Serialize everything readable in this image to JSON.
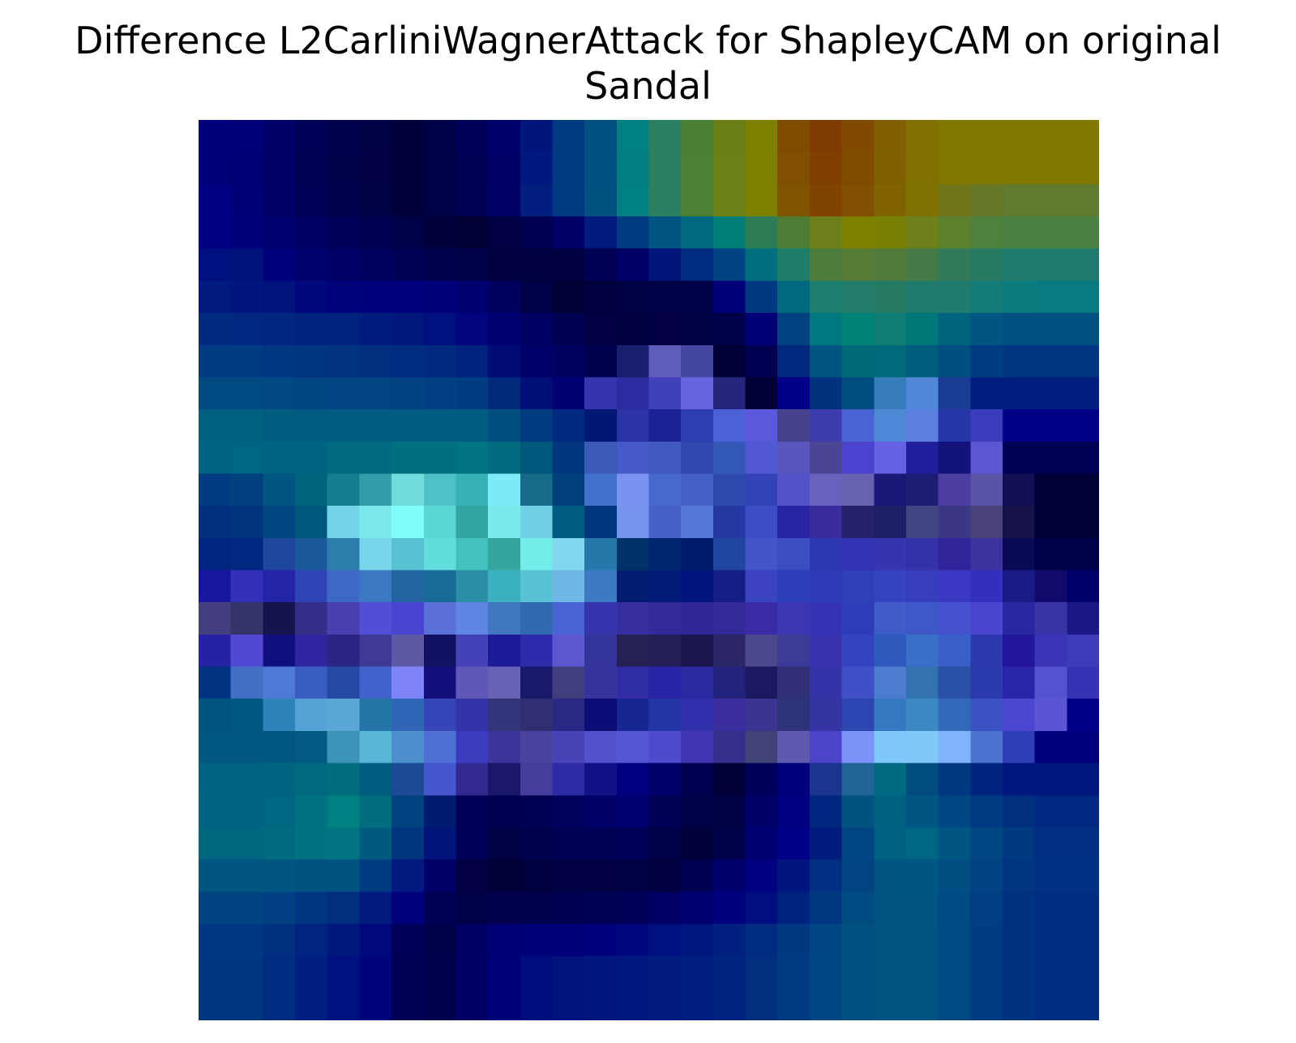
{
  "chart_data": {
    "type": "heatmap",
    "title": "Difference L2CarliniWagnerAttack for ShapleyCAM on original\nSandal",
    "rows": 28,
    "cols": 28,
    "axes_visible": false,
    "colorbar": false,
    "colormap": "jet overlay on image",
    "cells_hex": [
      [
        "#00007a",
        "#000079",
        "#000068",
        "#000058",
        "#00004e",
        "#000044",
        "#00003a",
        "#000049",
        "#00005a",
        "#00006c",
        "#00167d",
        "#003a82",
        "#005182",
        "#008080",
        "#2c8062",
        "#4a8034",
        "#6a8017",
        "#808000",
        "#804d00",
        "#803c00",
        "#804a00",
        "#806000",
        "#807000",
        "#807800",
        "#807800",
        "#807800",
        "#807800",
        "#807800"
      ],
      [
        "#000078",
        "#000075",
        "#000066",
        "#000055",
        "#00004b",
        "#000043",
        "#00003a",
        "#000046",
        "#000056",
        "#000068",
        "#001980",
        "#003a82",
        "#005082",
        "#007e80",
        "#2c8062",
        "#4b8035",
        "#6b8017",
        "#808000",
        "#805000",
        "#803f00",
        "#804c00",
        "#806100",
        "#807000",
        "#807800",
        "#807800",
        "#807800",
        "#807800",
        "#807800"
      ],
      [
        "#000080",
        "#000077",
        "#000068",
        "#000058",
        "#00004e",
        "#000045",
        "#00003c",
        "#000048",
        "#000057",
        "#000069",
        "#001f7f",
        "#003a82",
        "#005080",
        "#008080",
        "#2c8062",
        "#4b8035",
        "#6b8017",
        "#808000",
        "#805300",
        "#804400",
        "#805000",
        "#806400",
        "#807200",
        "#707418",
        "#647828",
        "#607a30",
        "#607a30",
        "#607a30"
      ],
      [
        "#000081",
        "#00007a",
        "#000070",
        "#000063",
        "#00005a",
        "#000050",
        "#000048",
        "#00003c",
        "#000035",
        "#000042",
        "#000053",
        "#000066",
        "#001a7d",
        "#003a82",
        "#005582",
        "#006980",
        "#007e76",
        "#2c7d55",
        "#4d7d34",
        "#6d7f1a",
        "#808000",
        "#798006",
        "#6d801a",
        "#5d802e",
        "#4e803e",
        "#4a8042",
        "#4a8042",
        "#4a8042"
      ],
      [
        "#000f7e",
        "#00117b",
        "#00007c",
        "#00006e",
        "#000067",
        "#00005e",
        "#000055",
        "#00004d",
        "#000049",
        "#00003f",
        "#000040",
        "#000041",
        "#000054",
        "#000069",
        "#00167c",
        "#002d7f",
        "#004383",
        "#006f80",
        "#1e7e6a",
        "#4e7c3c",
        "#557b35",
        "#507a3c",
        "#437a48",
        "#337a58",
        "#267b65",
        "#217b6c",
        "#217b6c",
        "#217b6c"
      ],
      [
        "#001a80",
        "#00167e",
        "#00137d",
        "#00077a",
        "#00027a",
        "#00007c",
        "#00007e",
        "#00007a",
        "#000070",
        "#00005e",
        "#000048",
        "#000035",
        "#00003e",
        "#000045",
        "#000047",
        "#000048",
        "#000078",
        "#003882",
        "#006980",
        "#1e7f71",
        "#237d6a",
        "#267b65",
        "#207a6c",
        "#1f7b70",
        "#157b78",
        "#0b7b7e",
        "#087b80",
        "#087b80"
      ],
      [
        "#002980",
        "#002880",
        "#00267f",
        "#00237e",
        "#00227d",
        "#001c7c",
        "#00177d",
        "#000f7e",
        "#00047d",
        "#000070",
        "#000062",
        "#000051",
        "#000042",
        "#00003e",
        "#000042",
        "#000045",
        "#000048",
        "#000076",
        "#004180",
        "#007880",
        "#008276",
        "#0e7e74",
        "#007778",
        "#00647f",
        "#005582",
        "#005182",
        "#005182",
        "#005182"
      ],
      [
        "#003b82",
        "#003a82",
        "#003782",
        "#003582",
        "#003380",
        "#002f80",
        "#002c80",
        "#002a80",
        "#00217d",
        "#000b76",
        "#00006a",
        "#000060",
        "#00004f",
        "#181f6f",
        "#5f5cbb",
        "#4446a2",
        "#000038",
        "#000050",
        "#00287c",
        "#005582",
        "#006978",
        "#006a7a",
        "#005c7d",
        "#004e82",
        "#003c82",
        "#003582",
        "#003582",
        "#003582"
      ],
      [
        "#004a82",
        "#004a82",
        "#004882",
        "#004782",
        "#004582",
        "#004482",
        "#004282",
        "#003f82",
        "#003c82",
        "#00297a",
        "#000f77",
        "#000072",
        "#3635b0",
        "#2e2aa0",
        "#3f41b9",
        "#6864e0",
        "#25267c",
        "#000036",
        "#000088",
        "#00327e",
        "#004d82",
        "#357cbb",
        "#5087d6",
        "#1a3b93",
        "#001d80",
        "#001d80",
        "#001d80",
        "#001d80"
      ],
      [
        "#006080",
        "#006080",
        "#005d80",
        "#005c80",
        "#005c80",
        "#005c80",
        "#005c80",
        "#005c80",
        "#005b80",
        "#004e80",
        "#003c80",
        "#002a80",
        "#001873",
        "#2c35a6",
        "#1a2294",
        "#2d3eb0",
        "#4d61d6",
        "#5c58dd",
        "#45418a",
        "#3c3cae",
        "#4863d2",
        "#4e87d6",
        "#5b7ee0",
        "#2536a6",
        "#3a3cbc",
        "#000086",
        "#000086",
        "#000086"
      ],
      [
        "#006380",
        "#006580",
        "#006380",
        "#006380",
        "#006a80",
        "#006a80",
        "#007080",
        "#007080",
        "#007480",
        "#006a80",
        "#00587d",
        "#00367e",
        "#3b5ab8",
        "#4659c8",
        "#4258c2",
        "#2e48b0",
        "#3357b7",
        "#5158d4",
        "#5a56bd",
        "#4a4693",
        "#4d42d0",
        "#6462e2",
        "#211f9b",
        "#13137b",
        "#5e56d0",
        "#000057",
        "#000057",
        "#000057"
      ],
      [
        "#003c82",
        "#00407f",
        "#005582",
        "#00637e",
        "#177e8f",
        "#349ba8",
        "#70dcdd",
        "#4ec1c7",
        "#38b1b5",
        "#7bebf7",
        "#166b8a",
        "#003e7c",
        "#4072cc",
        "#7a92f0",
        "#4769cd",
        "#4561c8",
        "#2c49ac",
        "#3342b7",
        "#5453c8",
        "#6763bd",
        "#6563b0",
        "#1a1777",
        "#1e1d73",
        "#4c3ea0",
        "#5954a6",
        "#120f52",
        "#000036",
        "#000036"
      ],
      [
        "#00307e",
        "#00347e",
        "#004680",
        "#00587c",
        "#73d4e7",
        "#7ae8ec",
        "#80fdfd",
        "#5ad6d7",
        "#32a6a5",
        "#79ebed",
        "#72d0e6",
        "#005c80",
        "#00367e",
        "#7695ee",
        "#4462c8",
        "#5477d8",
        "#2437a2",
        "#3c4ec4",
        "#2924a4",
        "#3a2c9c",
        "#23226a",
        "#1f1e68",
        "#424484",
        "#3a3884",
        "#494178",
        "#141248",
        "#000038",
        "#000038"
      ],
      [
        "#002580",
        "#002880",
        "#1c479c",
        "#1b5a9a",
        "#297eab",
        "#78d6eb",
        "#57c2d3",
        "#62ddde",
        "#43c1bf",
        "#35a69e",
        "#74ecea",
        "#82d7f0",
        "#2678aa",
        "#003268",
        "#00266e",
        "#001d6c",
        "#20459e",
        "#4255c6",
        "#3b4ebf",
        "#2d37b0",
        "#3333b5",
        "#3734b0",
        "#3532a8",
        "#2d2599",
        "#3c339f",
        "#090955",
        "#000048",
        "#000048"
      ],
      [
        "#17179d",
        "#332fb7",
        "#2424a8",
        "#2f45b6",
        "#3d68c6",
        "#3a78c4",
        "#2264a0",
        "#186b96",
        "#2c8fa8",
        "#3ab0c0",
        "#59c2d6",
        "#6eb8e7",
        "#3e7ac4",
        "#001d72",
        "#001c76",
        "#01137c",
        "#141d84",
        "#3b43c0",
        "#2d3ebc",
        "#2e3ab8",
        "#2f3fb8",
        "#3543c0",
        "#373ebe",
        "#3b38c4",
        "#3230bd",
        "#1a1a87",
        "#100a6d",
        "#00006c"
      ],
      [
        "#423e80",
        "#34346a",
        "#16144f",
        "#332f88",
        "#4840b0",
        "#524fd6",
        "#4a45d1",
        "#5b6fd9",
        "#5e85e1",
        "#4177c1",
        "#326ab2",
        "#4963d2",
        "#3536ad",
        "#372fa0",
        "#33299b",
        "#2f2798",
        "#322a98",
        "#3a2ca6",
        "#3d36b2",
        "#3433b8",
        "#2f3cb8",
        "#3f5cc8",
        "#3f58c8",
        "#4551cd",
        "#4a44ce",
        "#2a28a0",
        "#3a33a8",
        "#1b1787"
      ],
      [
        "#2722a4",
        "#5147d2",
        "#111083",
        "#2f25a0",
        "#2b2485",
        "#403a96",
        "#5d59a2",
        "#131262",
        "#4542b8",
        "#1b1b9a",
        "#2d2bac",
        "#5d57d0",
        "#35349a",
        "#262153",
        "#231e57",
        "#1b1650",
        "#2c2767",
        "#4b488c",
        "#3e3a98",
        "#3a32ad",
        "#3443c0",
        "#2f5abd",
        "#3a6fc8",
        "#395fc8",
        "#2e38ae",
        "#21159e",
        "#3b34b6",
        "#3e3cb8"
      ],
      [
        "#003482",
        "#416fc4",
        "#4e7ad6",
        "#395dc0",
        "#2648a4",
        "#4263cc",
        "#7e84f8",
        "#13107b",
        "#5f58b8",
        "#6763b4",
        "#181968",
        "#403f7e",
        "#38339a",
        "#302ca4",
        "#2822a4",
        "#2c28a0",
        "#24237c",
        "#1b1a60",
        "#322f79",
        "#3434a8",
        "#3f4fc8",
        "#4c7cd0",
        "#3272ae",
        "#2a51a6",
        "#2b3aac",
        "#2924a8",
        "#5453d0",
        "#3633b4"
      ],
      [
        "#005580",
        "#005880",
        "#2e84b8",
        "#55a2d6",
        "#5aa6d6",
        "#2675a8",
        "#3165b8",
        "#3645b8",
        "#3434a8",
        "#34347a",
        "#2f2f72",
        "#2a2884",
        "#0c0c76",
        "#172693",
        "#2635a5",
        "#3030ad",
        "#3a2ea0",
        "#3a3492",
        "#2e3278",
        "#3634a2",
        "#2b46b0",
        "#3478c0",
        "#3c88c4",
        "#3468b8",
        "#3b52c4",
        "#4b45d0",
        "#5b54d4",
        "#000088"
      ],
      [
        "#005780",
        "#005880",
        "#005780",
        "#005a82",
        "#3c93b8",
        "#5ab6d6",
        "#4c8fcc",
        "#4f6fd4",
        "#3b3bc0",
        "#3c369a",
        "#4943a0",
        "#4844b8",
        "#5451cc",
        "#5456d4",
        "#4d4acc",
        "#3f35b0",
        "#352f8c",
        "#414278",
        "#5f5ab0",
        "#4c44c8",
        "#7b93f8",
        "#80c8fc",
        "#80c8f8",
        "#7fb4fc",
        "#4c73d0",
        "#2f3eb4",
        "#00007c",
        "#00007c"
      ],
      [
        "#006280",
        "#006280",
        "#006380",
        "#00697f",
        "#006d7e",
        "#005b80",
        "#1c4a96",
        "#4656cc",
        "#322a90",
        "#1b186a",
        "#443d9c",
        "#2e2ba4",
        "#111288",
        "#000080",
        "#00006a",
        "#000050",
        "#000038",
        "#000058",
        "#00007c",
        "#1a3590",
        "#1f6494",
        "#006880",
        "#004c80",
        "#003780",
        "#00237f",
        "#001780",
        "#001780",
        "#001780"
      ],
      [
        "#006380",
        "#006380",
        "#006580",
        "#007380",
        "#008080",
        "#006c80",
        "#00427f",
        "#001c70",
        "#000058",
        "#000050",
        "#000055",
        "#00005d",
        "#000069",
        "#000070",
        "#000056",
        "#00004a",
        "#000045",
        "#000066",
        "#000081",
        "#002780",
        "#005380",
        "#006080",
        "#005582",
        "#004682",
        "#003a82",
        "#002f80",
        "#002880",
        "#002880"
      ],
      [
        "#006680",
        "#006680",
        "#006a80",
        "#007280",
        "#007480",
        "#005a80",
        "#003680",
        "#00137a",
        "#000058",
        "#000045",
        "#00004e",
        "#000055",
        "#000056",
        "#000058",
        "#000046",
        "#00003a",
        "#000048",
        "#000070",
        "#000088",
        "#001c80",
        "#004682",
        "#006080",
        "#006582",
        "#005680",
        "#004682",
        "#003882",
        "#002e80",
        "#002e80"
      ],
      [
        "#005680",
        "#005680",
        "#005680",
        "#005380",
        "#005280",
        "#003a82",
        "#001a80",
        "#000068",
        "#000042",
        "#000038",
        "#00003e",
        "#000042",
        "#000042",
        "#000044",
        "#000040",
        "#000050",
        "#00006d",
        "#000080",
        "#001580",
        "#002e80",
        "#004482",
        "#005482",
        "#005682",
        "#004e82",
        "#004282",
        "#003582",
        "#003082",
        "#003082"
      ],
      [
        "#004282",
        "#004282",
        "#004082",
        "#003582",
        "#002f80",
        "#001a7f",
        "#00007c",
        "#000054",
        "#000046",
        "#00004e",
        "#00004e",
        "#000050",
        "#000054",
        "#000058",
        "#000066",
        "#000070",
        "#00007c",
        "#000e7f",
        "#00237f",
        "#003780",
        "#004a82",
        "#005582",
        "#005582",
        "#004a82",
        "#003d82",
        "#003282",
        "#002d80",
        "#002d80"
      ],
      [
        "#003682",
        "#003682",
        "#003080",
        "#00247f",
        "#00187e",
        "#00087a",
        "#000058",
        "#00004b",
        "#000062",
        "#000074",
        "#000079",
        "#00007a",
        "#00007c",
        "#00077e",
        "#00107e",
        "#001780",
        "#00207f",
        "#002c80",
        "#003882",
        "#004682",
        "#005182",
        "#005482",
        "#005482",
        "#004a82",
        "#003c82",
        "#003282",
        "#002d80",
        "#002d80"
      ],
      [
        "#003582",
        "#003582",
        "#002c80",
        "#001f80",
        "#00107e",
        "#00047a",
        "#000054",
        "#00004d",
        "#000064",
        "#000078",
        "#000b7c",
        "#00127e",
        "#00167f",
        "#00187f",
        "#001a7f",
        "#001d80",
        "#00237f",
        "#002f80",
        "#003a82",
        "#004682",
        "#005182",
        "#005482",
        "#005482",
        "#004a82",
        "#003c82",
        "#003282",
        "#002d80",
        "#002d80"
      ],
      [
        "#003582",
        "#003582",
        "#002c80",
        "#001f80",
        "#00107e",
        "#00047a",
        "#000054",
        "#00004d",
        "#000064",
        "#000078",
        "#000b7c",
        "#00127e",
        "#00167f",
        "#00187f",
        "#001a7f",
        "#001d80",
        "#00237f",
        "#002f80",
        "#003a82",
        "#004682",
        "#005182",
        "#005482",
        "#005482",
        "#004a82",
        "#003c82",
        "#003282",
        "#002d80",
        "#002d80"
      ]
    ]
  }
}
